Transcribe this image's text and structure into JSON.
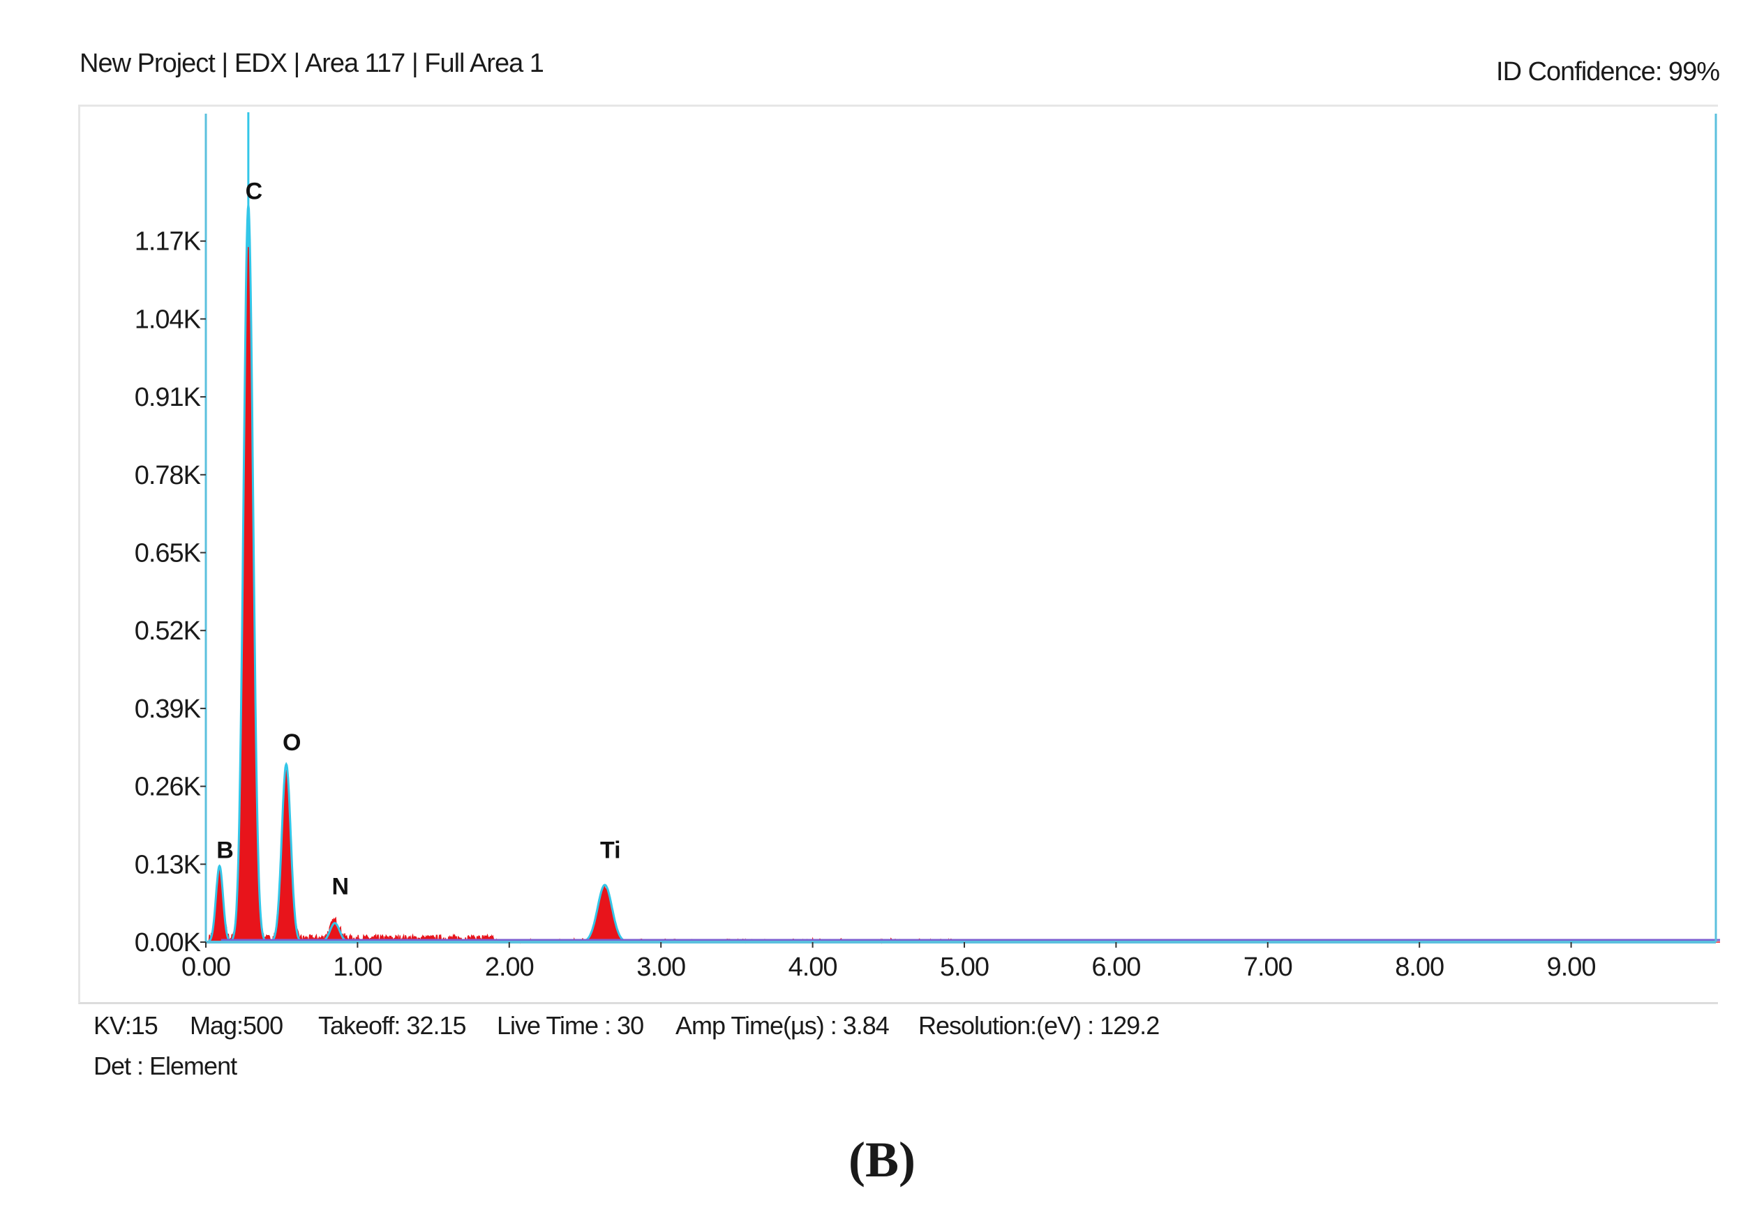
{
  "header": {
    "left": "New Project | EDX | Area 117 | Full Area 1",
    "right": "ID Confidence: 99%"
  },
  "footer": {
    "kv": "KV:15",
    "mag": "Mag:500",
    "takeoff": "Takeoff: 32.15",
    "live_time": "Live Time : 30",
    "amp_time": "Amp Time(µs) : 3.84",
    "resolution": "Resolution:(eV) : 129.2",
    "det": "Det : Element"
  },
  "panel_label": "(B)",
  "colors": {
    "spectrum": "#e8141b",
    "fit_line": "#33c6e8",
    "axis": "#5bc0de",
    "baseline": "#7a5fd0"
  },
  "chart_data": {
    "type": "area",
    "title": "",
    "xlabel": "",
    "ylabel": "",
    "xlim": [
      0,
      10
    ],
    "ylim": [
      0,
      1.3
    ],
    "grid": false,
    "x_ticks": [
      "0.00",
      "1.00",
      "2.00",
      "3.00",
      "4.00",
      "5.00",
      "6.00",
      "7.00",
      "8.00",
      "9.00"
    ],
    "y_ticks": [
      "0.00K",
      "0.13K",
      "0.26K",
      "0.39K",
      "0.52K",
      "0.65K",
      "0.78K",
      "0.91K",
      "1.04K",
      "1.17K"
    ],
    "peaks": [
      {
        "element": "B",
        "energy_kev": 0.09,
        "counts_k": 0.12
      },
      {
        "element": "C",
        "energy_kev": 0.28,
        "counts_k": 1.16
      },
      {
        "element": "O",
        "energy_kev": 0.53,
        "counts_k": 0.28
      },
      {
        "element": "N",
        "energy_kev": 0.85,
        "counts_k": 0.03
      },
      {
        "element": "Ti",
        "energy_kev": 2.63,
        "counts_k": 0.09
      }
    ]
  }
}
